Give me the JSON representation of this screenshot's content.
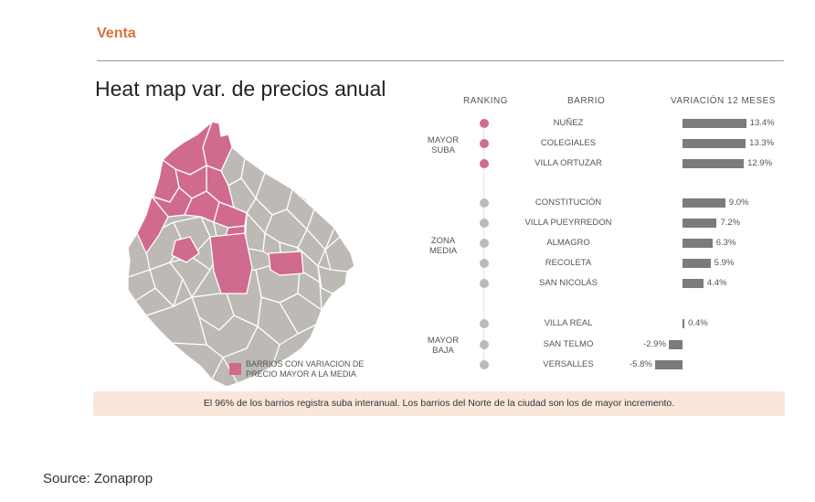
{
  "header": {
    "section": "Venta",
    "title": "Heat map var. de precios anual"
  },
  "columns": {
    "ranking": "RANKING",
    "barrio": "BARRIO",
    "variation": "VARIACIÓN 12 MESES"
  },
  "groups": [
    {
      "line1": "MAYOR",
      "line2": "SUBA"
    },
    {
      "line1": "ZONA",
      "line2": "MEDIA"
    },
    {
      "line1": "MAYOR",
      "line2": "BAJA"
    }
  ],
  "legend": {
    "text": "BARRIOS CON VARIACION DE PRECIO MAYOR A LA MEDIA",
    "color": "#d06a8e"
  },
  "note": "El 96% de los barrios registra suba interanual. Los barrios del Norte de la ciudad son los de mayor incremento.",
  "source": "Source: Zonaprop",
  "colors": {
    "highlight": "#d06a8e",
    "neutral": "#bdbab6",
    "bar": "#7b7b7b",
    "accent": "#d9703a"
  },
  "chart_data": {
    "type": "bar",
    "orientation": "horizontal",
    "title": "Heat map var. de precios anual",
    "xlabel": "VARIACIÓN 12 MESES",
    "categories": [
      "NUÑEZ",
      "COLEGIALES",
      "VILLA ORTUZAR",
      "CONSTITUCIÓN",
      "VILLA PUEYRREDON",
      "ALMAGRO",
      "RECOLETA",
      "SAN NICOLÁS",
      "VILLA REAL",
      "SAN TELMO",
      "VERSALLES"
    ],
    "values": [
      13.4,
      13.3,
      12.9,
      9.0,
      7.2,
      6.3,
      5.9,
      4.4,
      0.4,
      -2.9,
      -5.8
    ],
    "labels": [
      "13.4%",
      "13.3%",
      "12.9%",
      "9.0%",
      "7.2%",
      "6.3%",
      "5.9%",
      "4.4%",
      "0.4%",
      "-2.9%",
      "-5.8%"
    ],
    "group_index": [
      0,
      0,
      0,
      1,
      1,
      1,
      1,
      1,
      2,
      2,
      2
    ],
    "unit": "%"
  }
}
